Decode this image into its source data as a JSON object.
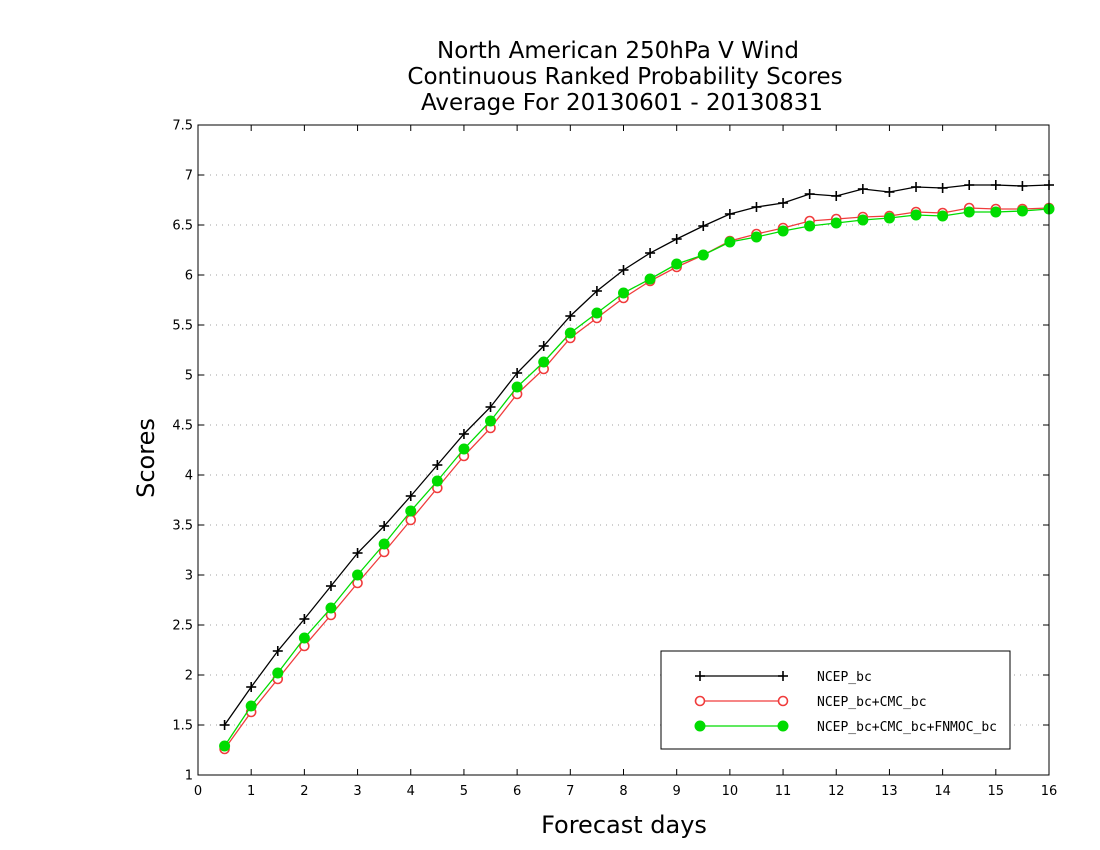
{
  "chart_data": {
    "type": "line",
    "title_lines": [
      "North American 250hPa V Wind",
      "Continuous Ranked Probability Scores",
      "Average For 20130601 - 20130831"
    ],
    "xlabel": "Forecast days",
    "ylabel": "Scores",
    "xlim": [
      0,
      16
    ],
    "ylim": [
      1,
      7.5
    ],
    "xticks": [
      0,
      1,
      2,
      3,
      4,
      5,
      6,
      7,
      8,
      9,
      10,
      11,
      12,
      13,
      14,
      15,
      16
    ],
    "yticks": [
      1,
      1.5,
      2,
      2.5,
      3,
      3.5,
      4,
      4.5,
      5,
      5.5,
      6,
      6.5,
      7,
      7.5
    ],
    "grid": "horizontal dotted",
    "legend_position": "bottom-right",
    "x": [
      0.5,
      1,
      1.5,
      2,
      2.5,
      3,
      3.5,
      4,
      4.5,
      5,
      5.5,
      6,
      6.5,
      7,
      7.5,
      8,
      8.5,
      9,
      9.5,
      10,
      10.5,
      11,
      11.5,
      12,
      12.5,
      13,
      13.5,
      14,
      14.5,
      15,
      15.5,
      16
    ],
    "series": [
      {
        "name": "NCEP_bc",
        "color": "#000000",
        "marker": "plus",
        "values": [
          1.5,
          1.88,
          2.24,
          2.56,
          2.89,
          3.22,
          3.49,
          3.79,
          4.1,
          4.41,
          4.68,
          5.02,
          5.29,
          5.59,
          5.84,
          6.05,
          6.22,
          6.36,
          6.49,
          6.61,
          6.68,
          6.72,
          6.81,
          6.79,
          6.86,
          6.83,
          6.88,
          6.87,
          6.9,
          6.9,
          6.89,
          6.9
        ]
      },
      {
        "name": "NCEP_bc+CMC_bc",
        "color": "#f03c3c",
        "marker": "open-circle",
        "values": [
          1.26,
          1.63,
          1.96,
          2.29,
          2.6,
          2.92,
          3.23,
          3.55,
          3.87,
          4.19,
          4.47,
          4.81,
          5.06,
          5.37,
          5.57,
          5.77,
          5.94,
          6.08,
          6.2,
          6.34,
          6.41,
          6.47,
          6.54,
          6.56,
          6.58,
          6.59,
          6.63,
          6.62,
          6.67,
          6.66,
          6.66,
          6.67
        ]
      },
      {
        "name": "NCEP_bc+CMC_bc+FNMOC_bc",
        "color": "#00dc00",
        "marker": "filled-circle",
        "values": [
          1.29,
          1.69,
          2.02,
          2.37,
          2.67,
          3.0,
          3.31,
          3.64,
          3.94,
          4.26,
          4.54,
          4.88,
          5.13,
          5.42,
          5.62,
          5.82,
          5.96,
          6.11,
          6.2,
          6.33,
          6.38,
          6.44,
          6.49,
          6.52,
          6.55,
          6.57,
          6.6,
          6.59,
          6.63,
          6.63,
          6.64,
          6.66
        ]
      }
    ]
  }
}
